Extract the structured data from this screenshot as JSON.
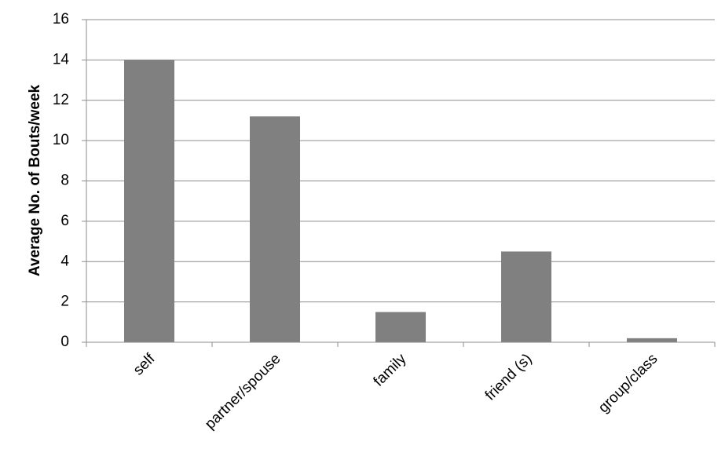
{
  "chart_data": {
    "type": "bar",
    "y_label": "Average No. of Bouts/week",
    "categories": [
      "self",
      "partner/spouse",
      "family",
      "friend (s)",
      "group/class"
    ],
    "values": [
      14,
      11.2,
      1.5,
      4.5,
      0.2
    ],
    "color": "#808080",
    "ylim": [
      0,
      16
    ],
    "yticks": [
      0,
      2,
      4,
      6,
      8,
      10,
      12,
      14,
      16
    ],
    "grid": true
  }
}
